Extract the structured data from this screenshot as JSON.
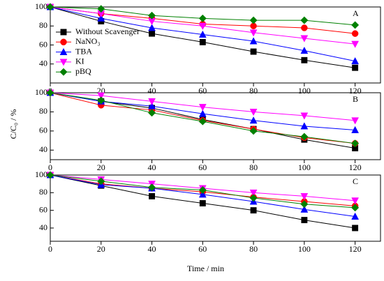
{
  "chart_data": [
    {
      "type": "line",
      "label": "A",
      "ylabel": "C/C₀ / %",
      "legend": "upper left",
      "x": [
        0,
        20,
        40,
        60,
        80,
        100,
        120
      ],
      "xlim": [
        0,
        130
      ],
      "xticks": [
        0,
        20,
        40,
        60,
        80,
        100,
        120
      ],
      "ylim": [
        20,
        100
      ],
      "yticks": [
        40,
        60,
        80,
        100
      ],
      "series": [
        {
          "name": "Without Scavenger",
          "color": "#000000",
          "marker": "square",
          "values": [
            100,
            85,
            72,
            63,
            53,
            44,
            36
          ]
        },
        {
          "name": "NaNO₃",
          "color": "#ff0000",
          "marker": "circle",
          "values": [
            100,
            93,
            88,
            82,
            80,
            78,
            72
          ]
        },
        {
          "name": "TBA",
          "color": "#0000ff",
          "marker": "triangle-up",
          "values": [
            100,
            88,
            78,
            71,
            64,
            54,
            43
          ]
        },
        {
          "name": "KI",
          "color": "#ff00ff",
          "marker": "triangle-down",
          "values": [
            100,
            93,
            85,
            80,
            73,
            67,
            61
          ]
        },
        {
          "name": "pBQ",
          "color": "#008000",
          "marker": "diamond",
          "values": [
            100,
            98,
            91,
            88,
            86,
            86,
            81
          ]
        }
      ]
    },
    {
      "type": "line",
      "label": "B",
      "x": [
        0,
        20,
        40,
        60,
        80,
        100,
        120
      ],
      "xlim": [
        0,
        130
      ],
      "xticks": [
        0,
        20,
        40,
        60,
        80,
        100,
        120
      ],
      "ylim": [
        30,
        100
      ],
      "yticks": [
        40,
        60,
        80,
        100
      ],
      "series": [
        {
          "color": "#000000",
          "marker": "square",
          "values": [
            100,
            91,
            84,
            72,
            62,
            51,
            42
          ]
        },
        {
          "color": "#ff0000",
          "marker": "circle",
          "values": [
            100,
            87,
            82,
            71,
            62,
            53,
            47
          ]
        },
        {
          "color": "#0000ff",
          "marker": "triangle-up",
          "values": [
            100,
            91,
            86,
            78,
            71,
            65,
            61
          ]
        },
        {
          "color": "#ff00ff",
          "marker": "triangle-down",
          "values": [
            100,
            97,
            91,
            85,
            80,
            76,
            71
          ]
        },
        {
          "color": "#008000",
          "marker": "diamond",
          "values": [
            100,
            92,
            79,
            70,
            60,
            54,
            47
          ]
        }
      ]
    },
    {
      "type": "line",
      "label": "C",
      "xlabel": "Time / min",
      "x": [
        0,
        20,
        40,
        60,
        80,
        100,
        120
      ],
      "xlim": [
        0,
        130
      ],
      "xticks": [
        0,
        20,
        40,
        60,
        80,
        100,
        120
      ],
      "ylim": [
        25,
        100
      ],
      "yticks": [
        40,
        60,
        80,
        100
      ],
      "series": [
        {
          "color": "#000000",
          "marker": "square",
          "values": [
            100,
            88,
            76,
            68,
            60,
            49,
            40
          ]
        },
        {
          "color": "#ff0000",
          "marker": "circle",
          "values": [
            100,
            90,
            85,
            81,
            75,
            70,
            65
          ]
        },
        {
          "color": "#0000ff",
          "marker": "triangle-up",
          "values": [
            100,
            89,
            85,
            78,
            70,
            61,
            53
          ]
        },
        {
          "color": "#ff00ff",
          "marker": "triangle-down",
          "values": [
            100,
            95,
            90,
            85,
            80,
            76,
            71
          ]
        },
        {
          "color": "#008000",
          "marker": "diamond",
          "values": [
            100,
            93,
            86,
            83,
            74,
            67,
            63
          ]
        }
      ]
    }
  ]
}
